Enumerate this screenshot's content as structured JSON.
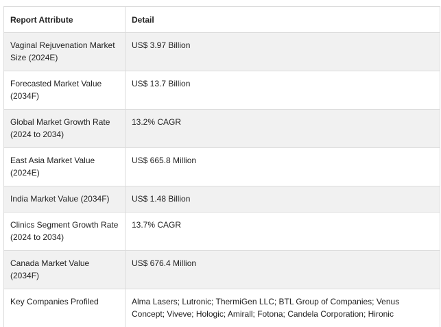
{
  "table": {
    "headers": [
      "Report Attribute",
      "Detail"
    ],
    "rows": [
      {
        "attribute": "Vaginal Rejuvenation Market Size (2024E)",
        "detail": "US$ 3.97 Billion"
      },
      {
        "attribute": "Forecasted Market Value (2034F)",
        "detail": "US$ 13.7 Billion"
      },
      {
        "attribute": "Global Market Growth Rate (2024 to 2034)",
        "detail": "13.2% CAGR"
      },
      {
        "attribute": "East Asia Market Value (2024E)",
        "detail": "US$ 665.8 Million"
      },
      {
        "attribute": "India Market Value (2034F)",
        "detail": "US$ 1.48 Billion"
      },
      {
        "attribute": "Clinics Segment Growth Rate (2024 to 2034)",
        "detail": "13.7% CAGR"
      },
      {
        "attribute": "Canada Market Value (2034F)",
        "detail": "US$ 676.4 Million"
      },
      {
        "attribute": "Key Companies Profiled",
        "detail": "Alma Lasers; Lutronic; ThermiGen LLC; BTL Group of Companies; Venus Concept; Viveve; Hologic; Amirall; Fotona; Candela Corporation; Hironic"
      }
    ]
  }
}
